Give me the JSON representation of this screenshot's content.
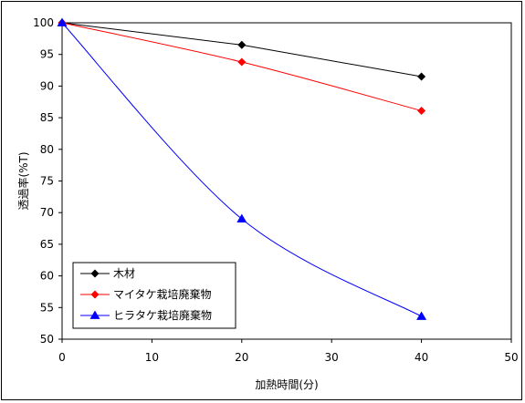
{
  "chart_data": {
    "type": "line",
    "title": "",
    "xlabel": "加熱時間(分)",
    "ylabel": "透過率(%T)",
    "xlim": [
      0,
      50
    ],
    "ylim": [
      50,
      100
    ],
    "xticks": [
      0,
      10,
      20,
      30,
      40,
      50
    ],
    "yticks": [
      50,
      55,
      60,
      65,
      70,
      75,
      80,
      85,
      90,
      95,
      100
    ],
    "grid": false,
    "legend_position": "bottom-left",
    "series": [
      {
        "name": "木材",
        "x": [
          0,
          20,
          40
        ],
        "values": [
          100,
          96.5,
          91.5
        ],
        "color": "#000000",
        "marker": "diamond",
        "smooth": false
      },
      {
        "name": "マイタケ栽培廃棄物",
        "x": [
          0,
          20,
          40
        ],
        "values": [
          100,
          93.8,
          86.1
        ],
        "color": "#ff0000",
        "marker": "diamond",
        "smooth": true
      },
      {
        "name": "ヒラタケ栽培廃棄物",
        "x": [
          0,
          20,
          40
        ],
        "values": [
          100,
          69,
          53.6
        ],
        "color": "#0000ff",
        "marker": "triangle",
        "smooth": true
      }
    ]
  }
}
